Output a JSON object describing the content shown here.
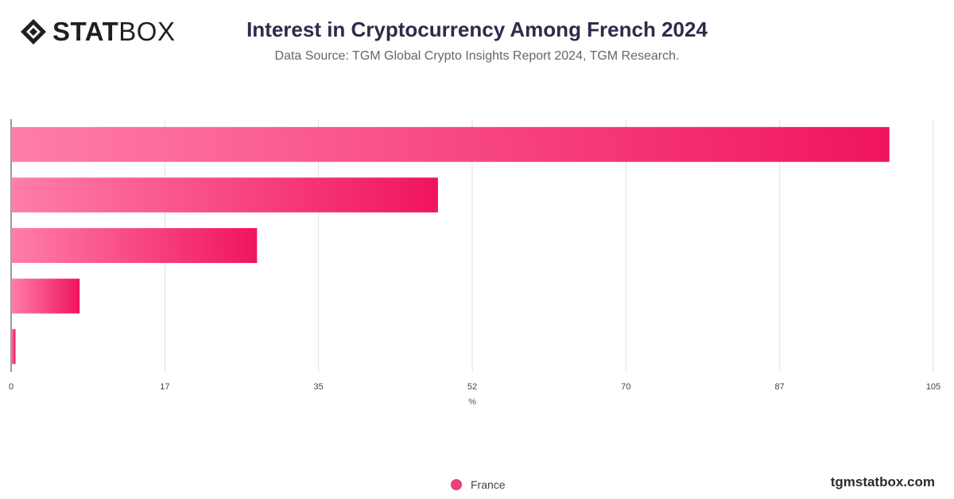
{
  "header": {
    "logo_bold": "STAT",
    "logo_light": "BOX",
    "title": "Interest in Cryptocurrency Among French 2024",
    "subtitle": "Data Source: TGM Global Crypto Insights Report 2024, TGM Research."
  },
  "chart_data": {
    "type": "bar",
    "orientation": "horizontal",
    "title": "Interest in Cryptocurrency Among French 2024",
    "subtitle": "Data Source: TGM Global Crypto Insights Report 2024, TGM Research.",
    "xlabel": "%",
    "ylabel": "",
    "categories": [
      "",
      "",
      "",
      "",
      ""
    ],
    "series": [
      {
        "name": "France",
        "values": [
          100,
          48.6,
          28,
          7.8,
          0.5
        ]
      }
    ],
    "xlim": [
      0,
      105
    ],
    "xticks": [
      "0",
      "17",
      "35",
      "52",
      "70",
      "87",
      "105"
    ],
    "grid": "vertical",
    "legend": "bottom-center",
    "colors": {
      "bar_start": "#ff7eab",
      "bar_end": "#f0145f",
      "grid": "#e0e0e0"
    }
  },
  "legend": {
    "label": "France",
    "color": "#ec407a"
  },
  "footer": {
    "url": "tgmstatbox.com"
  }
}
